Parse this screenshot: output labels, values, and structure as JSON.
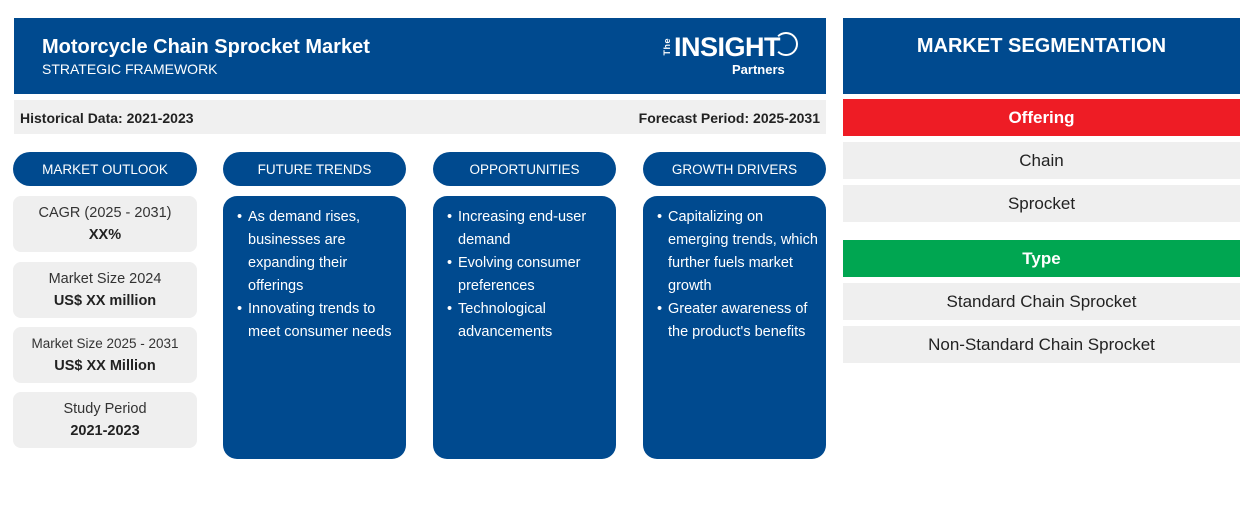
{
  "header": {
    "title": "Motorcycle Chain Sprocket Market",
    "subtitle": "STRATEGIC FRAMEWORK"
  },
  "logo": {
    "the": "The",
    "insight": "INSIGHT",
    "partners": "Partners"
  },
  "periods": {
    "historical": "Historical Data: 2021-2023",
    "forecast": "Forecast Period: 2025-2031"
  },
  "columns": {
    "market_outlook": "MARKET OUTLOOK",
    "future_trends": "FUTURE TRENDS",
    "opportunities": "OPPORTUNITIES",
    "growth_drivers": "GROWTH DRIVERS"
  },
  "outlook_cards": [
    {
      "label": "CAGR (2025 - 2031)",
      "value": "XX%"
    },
    {
      "label": "Market Size 2024",
      "value": "US$ XX million"
    },
    {
      "label": "Market Size 2025 - 2031",
      "value": "US$ XX Million"
    },
    {
      "label": "Study Period",
      "value": "2021-2023"
    }
  ],
  "future_trends": [
    "As demand rises, businesses are expanding their offerings",
    "Innovating trends to meet consumer needs"
  ],
  "opportunities": [
    "Increasing end-user demand",
    "Evolving consumer preferences",
    "Technological advancements"
  ],
  "growth_drivers": [
    "Capitalizing on emerging trends, which further fuels market growth",
    "Greater awareness of the product's benefits"
  ],
  "segmentation": {
    "title": "MARKET SEGMENTATION",
    "offering": {
      "heading": "Offering",
      "items": [
        "Chain",
        "Sprocket"
      ]
    },
    "type": {
      "heading": "Type",
      "items": [
        "Standard Chain Sprocket",
        "Non-Standard Chain Sprocket"
      ]
    }
  },
  "colors": {
    "navy": "#004a8f",
    "offering_red": "#ee1c25",
    "type_green": "#00a651",
    "card_grey": "#efefef"
  }
}
